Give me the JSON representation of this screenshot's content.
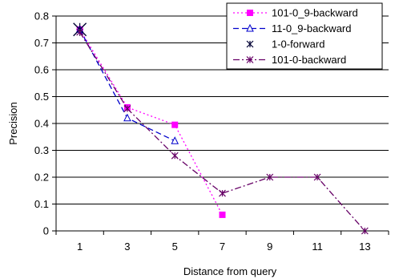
{
  "chart_data": {
    "type": "line",
    "title": "",
    "xlabel": "Distance from query",
    "ylabel": "Precision",
    "x_categories": [
      "1",
      "3",
      "5",
      "7",
      "9",
      "11",
      "13"
    ],
    "x_values": [
      1,
      3,
      5,
      7,
      9,
      11,
      13
    ],
    "ylim": [
      0,
      0.8
    ],
    "yticks": [
      "0",
      "0.1",
      "0.2",
      "0.3",
      "0.4",
      "0.5",
      "0.6",
      "0.7",
      "0.8"
    ],
    "ytick_values": [
      0,
      0.1,
      0.2,
      0.3,
      0.4,
      0.5,
      0.6,
      0.7,
      0.8
    ],
    "grid": "horizontal",
    "legend_position": "top-right",
    "series": [
      {
        "name": "101-0_9-backward",
        "color": "#ff00ff",
        "dash": "dotted",
        "marker": "square",
        "points": [
          [
            1,
            0.75
          ],
          [
            3,
            0.46
          ],
          [
            5,
            0.395
          ],
          [
            7,
            0.06
          ]
        ]
      },
      {
        "name": "11-0_9-backward",
        "color": "#0000cc",
        "dash": "dashed",
        "marker": "triangle",
        "points": [
          [
            1,
            0.75
          ],
          [
            3,
            0.42
          ],
          [
            5,
            0.335
          ]
        ]
      },
      {
        "name": "1-0-forward",
        "color": "#000033",
        "dash": "none",
        "marker": "star",
        "points": [
          [
            1,
            0.75
          ]
        ]
      },
      {
        "name": "101-0-backward",
        "color": "#660066",
        "dash": "dashdot",
        "marker": "asterisk",
        "points": [
          [
            1,
            0.74
          ],
          [
            3,
            0.455
          ],
          [
            5,
            0.28
          ],
          [
            7,
            0.14
          ],
          [
            9,
            0.2
          ],
          [
            11,
            0.2
          ],
          [
            13,
            0.0
          ]
        ]
      }
    ]
  }
}
